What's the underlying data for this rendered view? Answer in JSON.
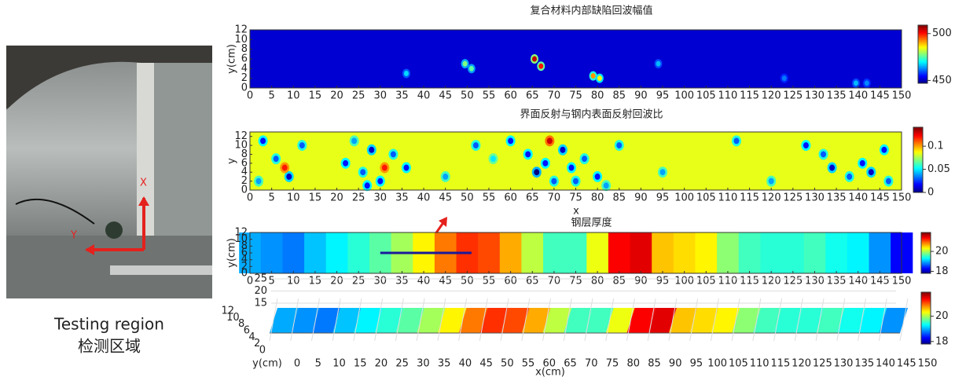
{
  "photo": {
    "caption_en": "Testing region",
    "caption_zh": "检测区域",
    "axis_x": "X",
    "axis_y": "Y"
  },
  "chart_data": [
    {
      "type": "spots",
      "title": "复合材料内部缺陷回波幅值",
      "ylabel": "y(cm)",
      "xlim": [
        0,
        150
      ],
      "xticks": [
        0,
        5,
        10,
        15,
        20,
        25,
        30,
        35,
        40,
        45,
        50,
        55,
        60,
        65,
        70,
        75,
        80,
        85,
        90,
        95,
        100,
        105,
        110,
        115,
        120,
        125,
        130,
        135,
        140,
        145,
        150
      ],
      "ylim": [
        0,
        12
      ],
      "yticks": [
        0,
        2,
        4,
        6,
        8,
        10,
        12
      ],
      "clim": [
        447,
        509
      ],
      "cticks": [
        450,
        500
      ],
      "background_value": 452,
      "x": [
        36,
        49.5,
        51,
        65.5,
        67,
        79,
        80.5,
        94,
        123,
        139.5,
        142
      ],
      "y": [
        3,
        5,
        4,
        6,
        4.5,
        2.5,
        2,
        5,
        2,
        1,
        1
      ],
      "values": [
        468,
        478,
        476,
        505,
        500,
        492,
        485,
        466,
        462,
        466,
        463
      ]
    },
    {
      "type": "spots",
      "title": "界面反射与钢内表面反射回波比",
      "xlabel": "x",
      "ylabel": "y",
      "xlim": [
        0,
        150
      ],
      "xticks": [
        0,
        5,
        10,
        15,
        20,
        25,
        30,
        35,
        40,
        45,
        50,
        55,
        60,
        65,
        70,
        75,
        80,
        85,
        90,
        95,
        100,
        105,
        110,
        115,
        120,
        125,
        130,
        135,
        140,
        145,
        150
      ],
      "ylim": [
        0,
        13
      ],
      "yticks": [
        0,
        2,
        4,
        6,
        8,
        10,
        12
      ],
      "clim": [
        0,
        0.141
      ],
      "cticks": [
        0,
        0.05,
        0.1
      ],
      "background_value": 0.085,
      "x": [
        3,
        6,
        9,
        2,
        12,
        22,
        26,
        28,
        30,
        24,
        33,
        36,
        45,
        52,
        56,
        60,
        66,
        68,
        70,
        72,
        74,
        77,
        80,
        82,
        85,
        69,
        64,
        75,
        95,
        112,
        120,
        128,
        132,
        134,
        138,
        141,
        143,
        146,
        147,
        31,
        27,
        8
      ],
      "y": [
        11,
        7,
        3,
        2,
        10,
        6,
        4,
        9,
        2,
        11,
        8,
        5,
        3,
        10,
        7,
        11,
        4,
        6,
        2,
        9,
        5,
        7,
        3,
        1,
        10,
        11,
        8,
        2,
        4,
        11,
        2,
        10,
        8,
        5,
        3,
        6,
        4,
        9,
        2,
        5,
        1,
        5
      ],
      "values": [
        0.02,
        0.03,
        0.01,
        0.04,
        0.03,
        0.02,
        0.03,
        0.01,
        0.02,
        0.04,
        0.03,
        0.02,
        0.04,
        0.03,
        0.05,
        0.02,
        0.0,
        0.02,
        0.03,
        0.01,
        0.02,
        0.03,
        0.02,
        0.04,
        0.03,
        0.13,
        0.02,
        0.03,
        0.04,
        0.03,
        0.04,
        0.02,
        0.03,
        0.01,
        0.03,
        0.02,
        0.01,
        0.02,
        0.03,
        0.12,
        0.02,
        0.12
      ]
    },
    {
      "type": "profile",
      "title": "钢层厚度",
      "ylabel": "y(cm)",
      "xlim": [
        0,
        150
      ],
      "xticks": [
        0,
        5,
        10,
        15,
        20,
        25,
        30,
        35,
        40,
        45,
        50,
        55,
        60,
        65,
        70,
        75,
        80,
        85,
        90,
        95,
        100,
        105,
        110,
        115,
        120,
        125,
        130,
        135,
        140,
        145,
        150
      ],
      "ylim": [
        0,
        12
      ],
      "yticks": [
        0,
        2,
        4,
        6,
        8,
        10,
        12
      ],
      "clim": [
        17.8,
        21.9
      ],
      "cticks": [
        18,
        20
      ],
      "x": [
        0,
        5,
        10,
        15,
        20,
        25,
        30,
        35,
        40,
        45,
        50,
        55,
        60,
        65,
        70,
        75,
        80,
        85,
        90,
        95,
        100,
        105,
        110,
        115,
        120,
        125,
        130,
        135,
        140,
        145,
        150
      ],
      "values": [
        19.0,
        18.9,
        18.8,
        19.1,
        19.3,
        19.5,
        19.7,
        20.0,
        20.4,
        20.9,
        21.2,
        21.1,
        20.7,
        20.1,
        19.6,
        19.6,
        20.3,
        21.4,
        21.5,
        20.6,
        20.5,
        20.4,
        19.9,
        19.6,
        19.5,
        19.5,
        19.6,
        19.4,
        19.3,
        18.9,
        18.3
      ],
      "scan_line": {
        "x": [
          30,
          51
        ],
        "y": [
          6,
          6
        ]
      }
    },
    {
      "type": "surface3d",
      "xlabel": "x(cm)",
      "ylabel": "y(cm)",
      "xlim": [
        0,
        150
      ],
      "xticks": [
        0,
        5,
        10,
        15,
        20,
        25,
        30,
        35,
        40,
        45,
        50,
        55,
        60,
        65,
        70,
        75,
        80,
        85,
        90,
        95,
        100,
        105,
        110,
        115,
        120,
        125,
        130,
        135,
        140,
        145,
        150
      ],
      "yticks": [
        0,
        2,
        4,
        6,
        8,
        10,
        12
      ],
      "ylim": [
        0,
        12
      ],
      "zlim": [
        15,
        25
      ],
      "zticks": [
        15,
        20,
        25
      ],
      "clim": [
        17.8,
        21.9
      ],
      "cticks": [
        18,
        20
      ],
      "x": [
        0,
        5,
        10,
        15,
        20,
        25,
        30,
        35,
        40,
        45,
        50,
        55,
        60,
        65,
        70,
        75,
        80,
        85,
        90,
        95,
        100,
        105,
        110,
        115,
        120,
        125,
        130,
        135,
        140,
        145,
        150
      ],
      "values": [
        19.0,
        18.9,
        18.8,
        19.1,
        19.3,
        19.5,
        19.7,
        20.0,
        20.4,
        20.9,
        21.2,
        21.1,
        20.7,
        20.1,
        19.6,
        19.6,
        20.3,
        21.4,
        21.5,
        20.6,
        20.5,
        20.4,
        19.9,
        19.6,
        19.5,
        19.5,
        19.6,
        19.4,
        19.3,
        18.9,
        18.3
      ]
    }
  ]
}
